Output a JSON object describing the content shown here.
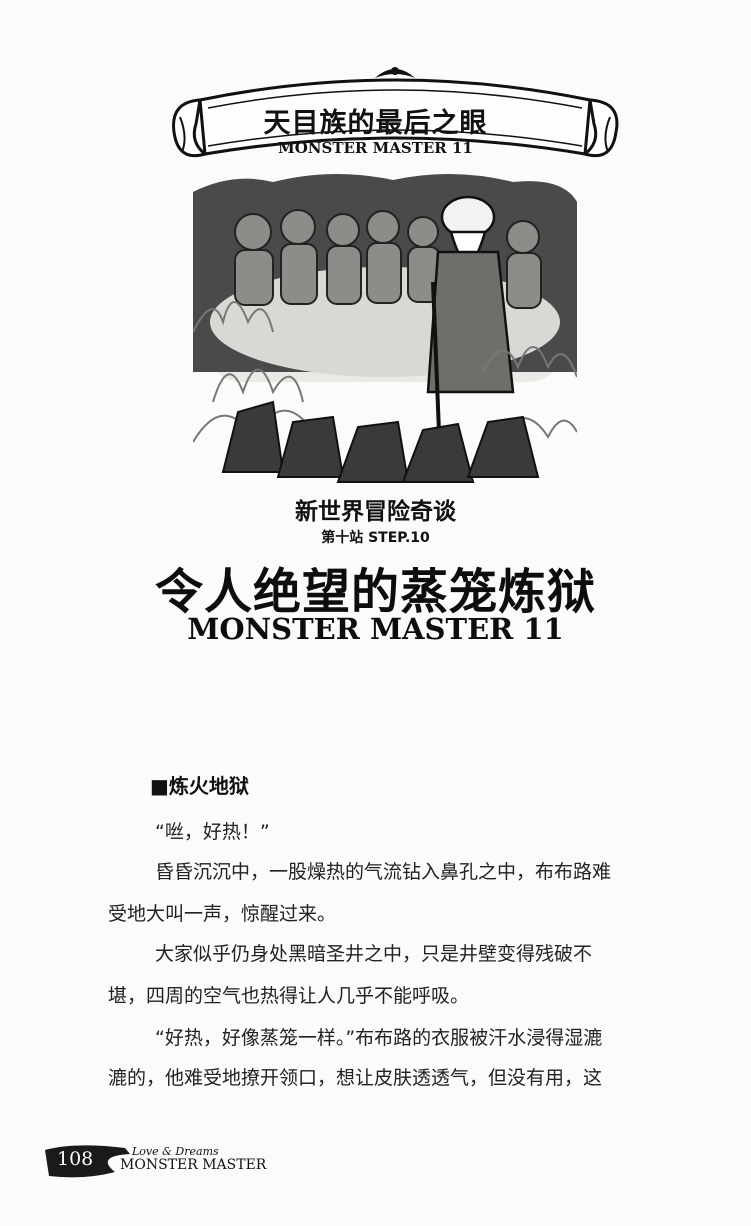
{
  "banner": {
    "title": "天目族的最后之眼",
    "subtitle": "MONSTER MASTER 11"
  },
  "series_title": "新世界冒险奇谈",
  "step": "第十站 STEP.10",
  "chapter": {
    "title": "令人绝望的蒸笼炼狱",
    "subtitle": "MONSTER MASTER 11"
  },
  "section_title": "■炼火地狱",
  "paragraphs": [
    "“咝，好热！”",
    "昏昏沉沉中，一股燥热的气流钻入鼻孔之中，布布路难",
    "受地大叫一声，惊醒过来。",
    "大家似乎仍身处黑暗圣井之中，只是井壁变得残破不",
    "堪，四周的空气也热得让人几乎不能呼吸。",
    "“好热，好像蒸笼一样。”布布路的衣服被汗水浸得湿漉",
    "漉的，他难受地撩开领口，想让皮肤透透气，但没有用，这"
  ],
  "footer": {
    "page_number": "108",
    "small_text": "Love & Dreams",
    "brand": "MONSTER MASTER"
  }
}
